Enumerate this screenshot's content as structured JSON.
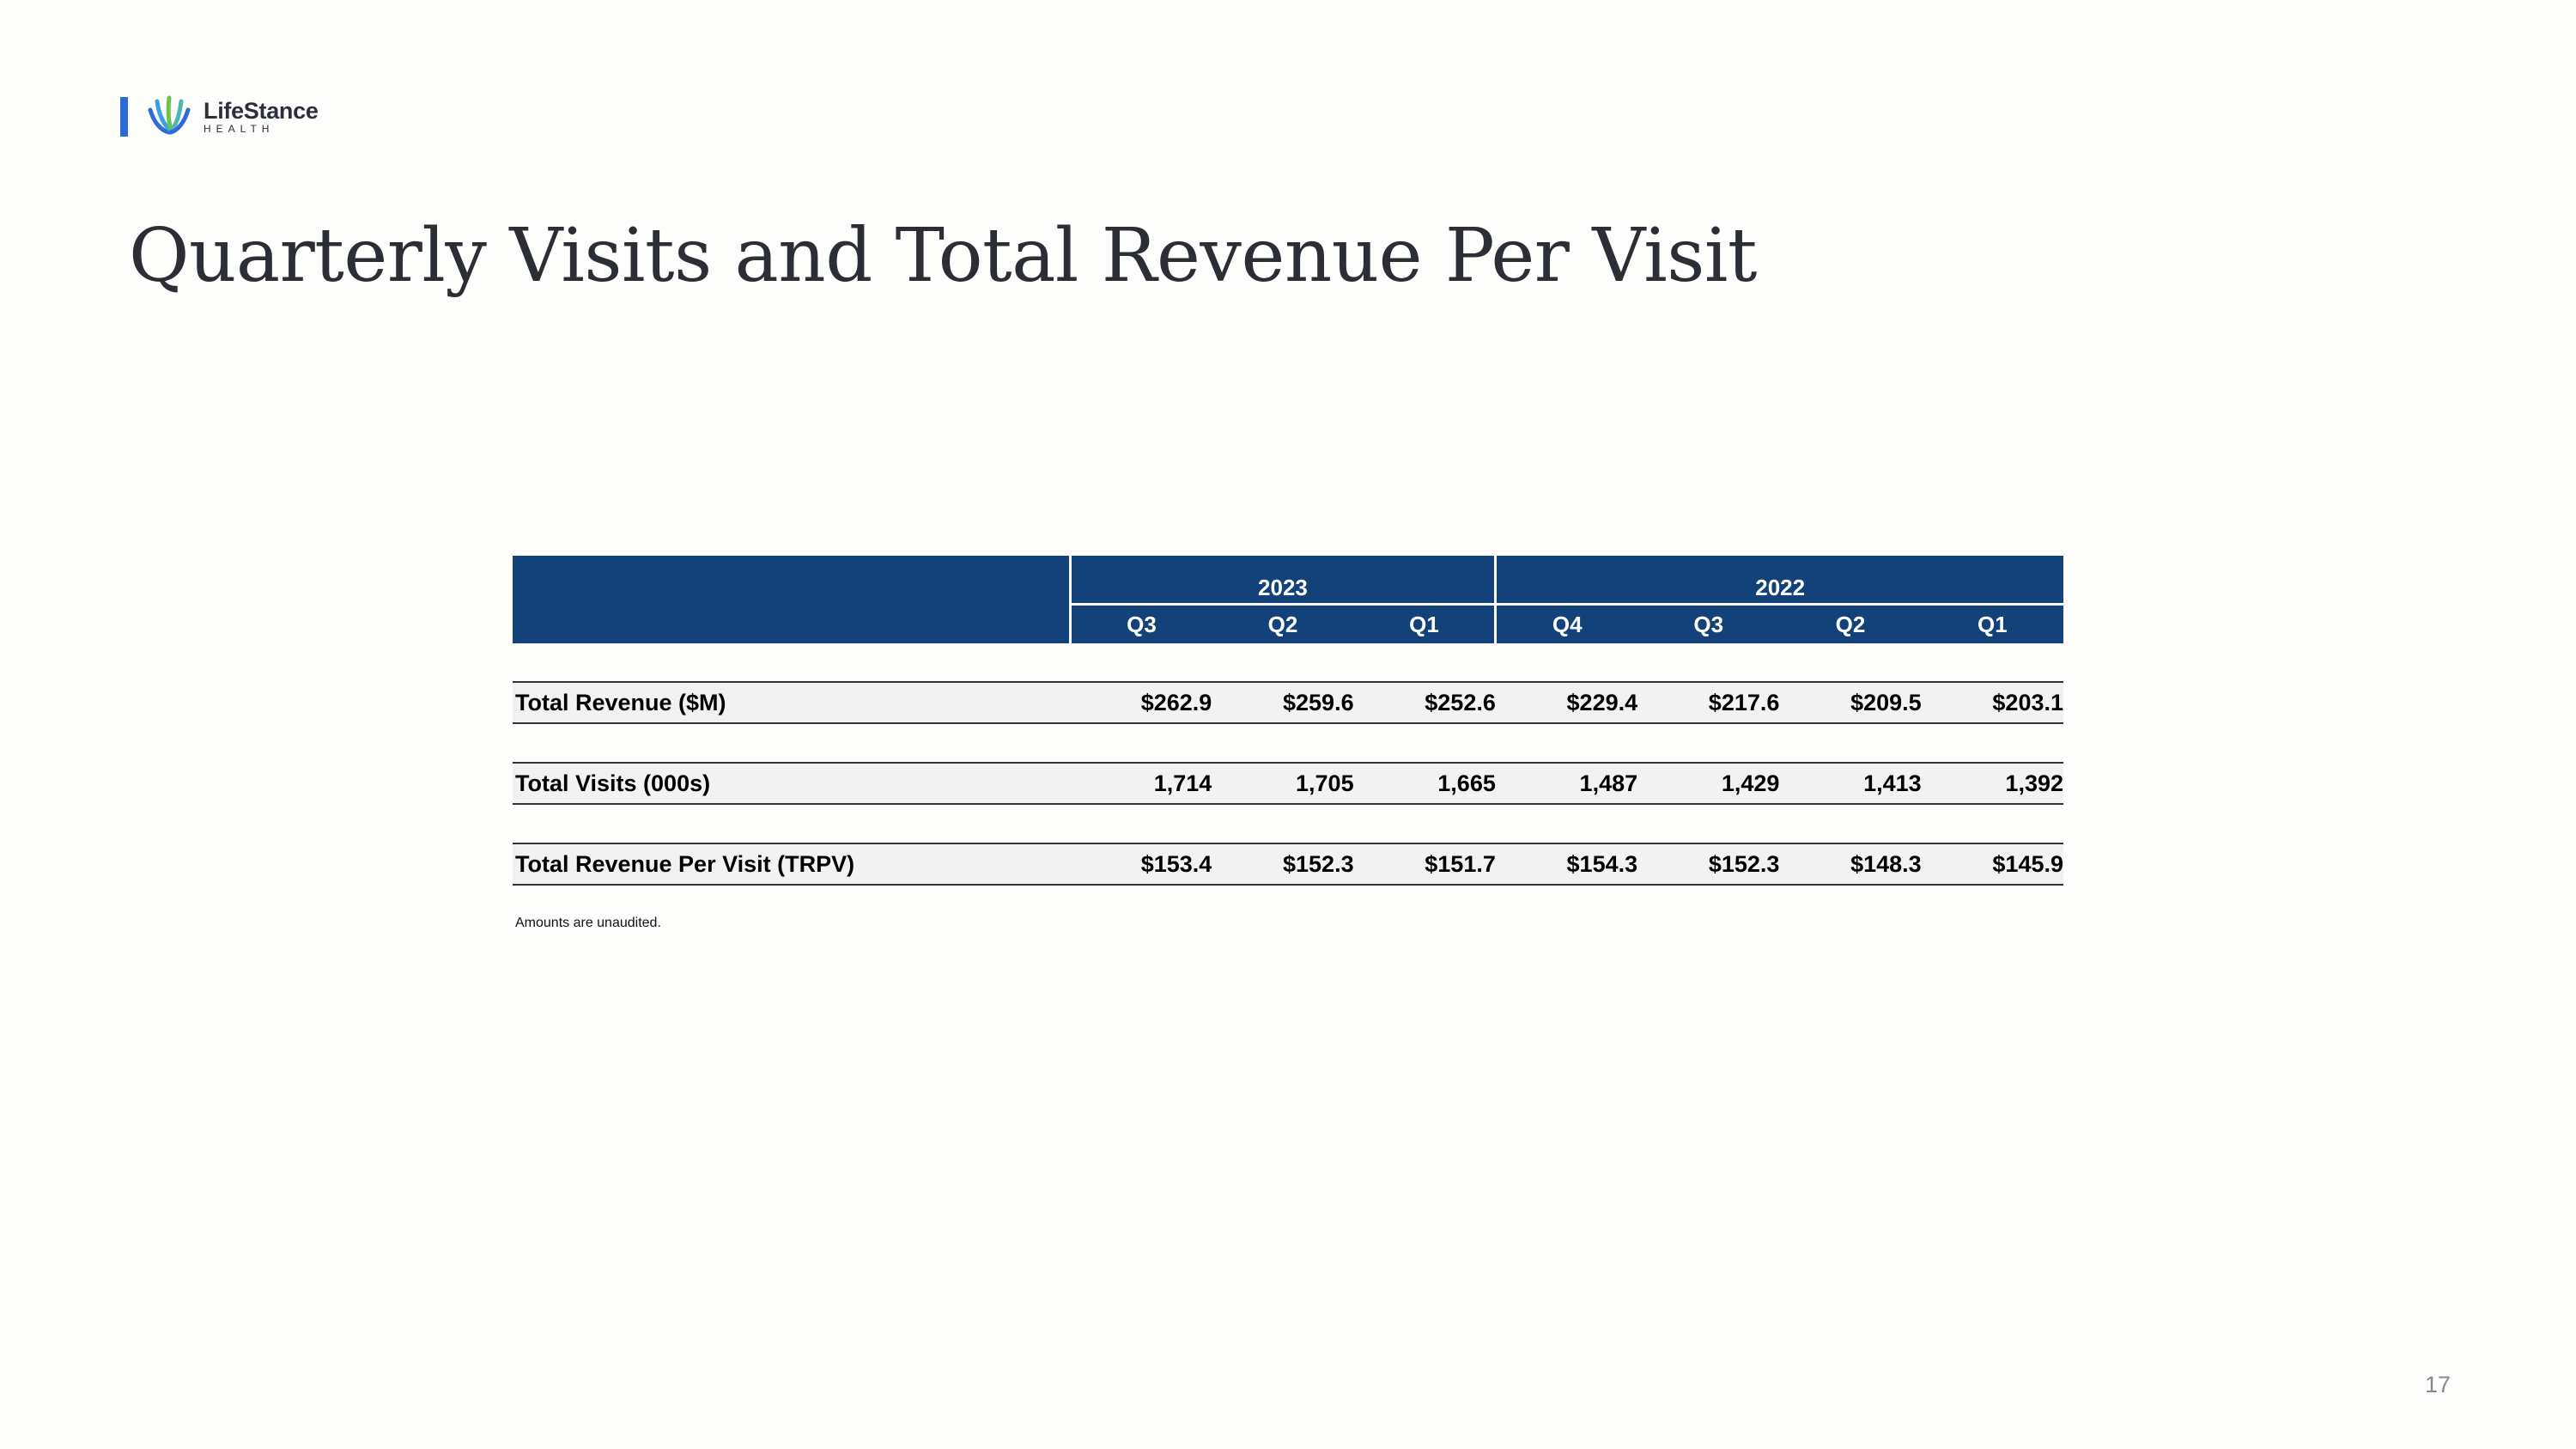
{
  "brand": {
    "name": "LifeStance",
    "subtitle": "HEALTH",
    "colors": {
      "accent": "#2f6bd8",
      "table_header": "#13417a",
      "row_fill": "#f2f2f2"
    }
  },
  "title": "Quarterly Visits and Total Revenue Per Visit",
  "table": {
    "years": [
      {
        "label": "2023",
        "quarters": [
          "Q3",
          "Q2",
          "Q1"
        ]
      },
      {
        "label": "2022",
        "quarters": [
          "Q4",
          "Q3",
          "Q2",
          "Q1"
        ]
      }
    ],
    "rows": [
      {
        "label": "Total Revenue ($M)",
        "values": [
          "$262.9",
          "$259.6",
          "$252.6",
          "$229.4",
          "$217.6",
          "$209.5",
          "$203.1"
        ]
      },
      {
        "label": "Total Visits (000s)",
        "values": [
          "1,714",
          "1,705",
          "1,665",
          "1,487",
          "1,429",
          "1,413",
          "1,392"
        ]
      },
      {
        "label": "Total Revenue Per Visit (TRPV)",
        "values": [
          "$153.4",
          "$152.3",
          "$151.7",
          "$154.3",
          "$152.3",
          "$148.3",
          "$145.9"
        ]
      }
    ]
  },
  "footnote": "Amounts are unaudited.",
  "page_number": "17"
}
